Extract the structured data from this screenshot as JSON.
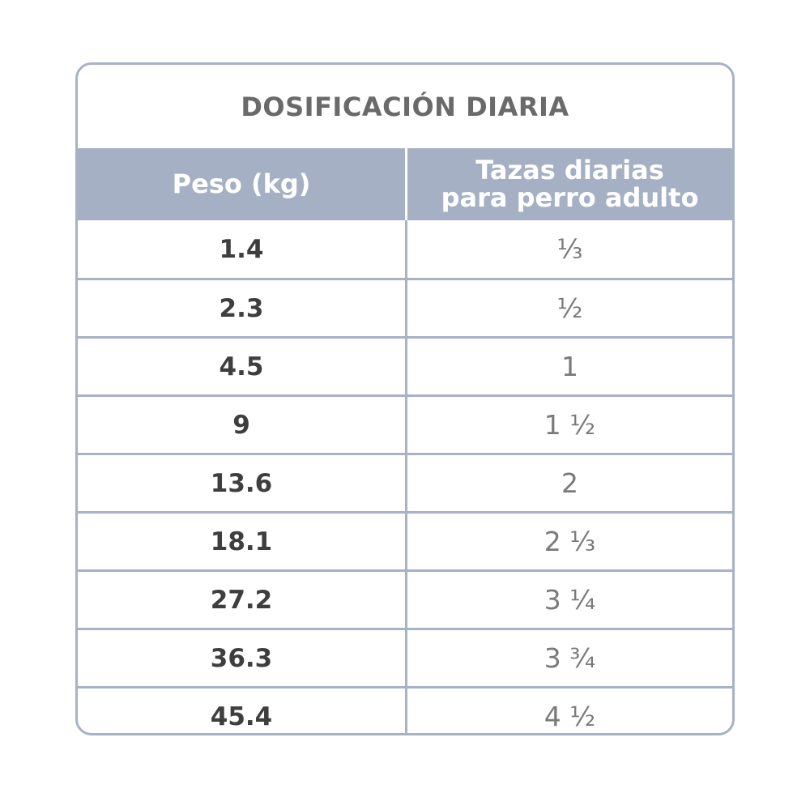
{
  "table": {
    "title": "DOSIFICACIÓN DIARIA",
    "headers": {
      "weight": "Peso (kg)",
      "cups_line1": "Tazas diarias",
      "cups_line2": "para perro adulto"
    },
    "rows": [
      {
        "weight": "1.4",
        "cups": "⅓"
      },
      {
        "weight": "2.3",
        "cups": "½"
      },
      {
        "weight": "4.5",
        "cups": "1"
      },
      {
        "weight": "9",
        "cups": "1 ½"
      },
      {
        "weight": "13.6",
        "cups": "2"
      },
      {
        "weight": "18.1",
        "cups": "2 ⅓"
      },
      {
        "weight": "27.2",
        "cups": "3 ¼"
      },
      {
        "weight": "36.3",
        "cups": "3 ¾"
      },
      {
        "weight": "45.4",
        "cups": "4 ½"
      }
    ]
  },
  "colors": {
    "border": "#a7b2c6",
    "header_bg": "#a5b0c4",
    "title_text": "#6a6a6a",
    "weight_text": "#3e3e3e",
    "cups_text": "#7a7a7a"
  }
}
